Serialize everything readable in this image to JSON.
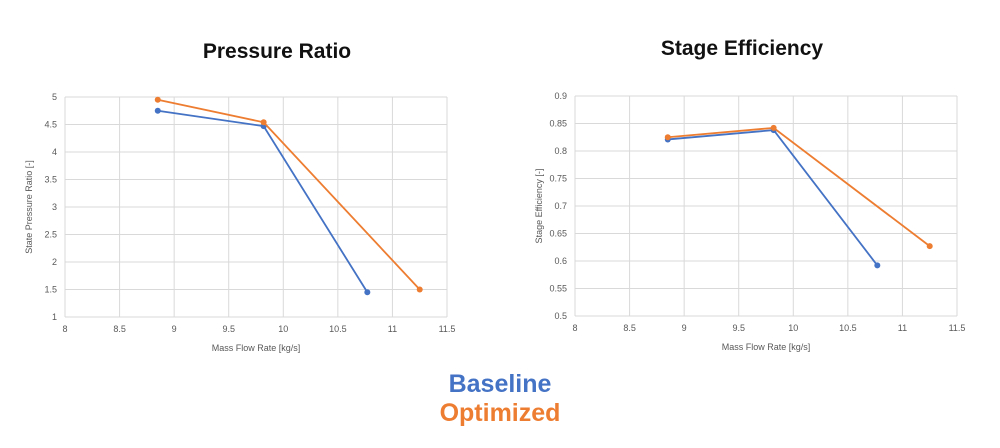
{
  "legend": {
    "baseline": "Baseline",
    "optimized": "Optimized"
  },
  "colors": {
    "baseline": "#4472C4",
    "optimized": "#ED7D31",
    "grid": "#D9D9D9",
    "axis_text": "#595959"
  },
  "chart_data": [
    {
      "type": "line",
      "title": "Pressure Ratio",
      "xlabel": "Mass Flow Rate [kg/s]",
      "ylabel": "State Pressure Ratio [-]",
      "xlim": [
        8,
        11.5
      ],
      "ylim": [
        1,
        5
      ],
      "xticks": [
        "8",
        "8.5",
        "9",
        "9.5",
        "10",
        "10.5",
        "11",
        "11.5"
      ],
      "yticks": [
        "1",
        "1.5",
        "2",
        "2.5",
        "3",
        "3.5",
        "4",
        "4.5",
        "5"
      ],
      "grid": true,
      "series": [
        {
          "name": "Baseline",
          "x": [
            8.85,
            9.82,
            10.77
          ],
          "y": [
            4.75,
            4.47,
            1.45
          ]
        },
        {
          "name": "Optimized",
          "x": [
            8.85,
            9.82,
            11.25
          ],
          "y": [
            4.95,
            4.54,
            1.5
          ]
        }
      ]
    },
    {
      "type": "line",
      "title": "Stage Efficiency",
      "xlabel": "Mass Flow Rate [kg/s]",
      "ylabel": "Stage Efficiency [-]",
      "xlim": [
        8,
        11.5
      ],
      "ylim": [
        0.5,
        0.9
      ],
      "xticks": [
        "8",
        "8.5",
        "9",
        "9.5",
        "10",
        "10.5",
        "11",
        "11.5"
      ],
      "yticks": [
        "0.5",
        "0.55",
        "0.6",
        "0.65",
        "0.7",
        "0.75",
        "0.8",
        "0.85",
        "0.9"
      ],
      "grid": true,
      "series": [
        {
          "name": "Baseline",
          "x": [
            8.85,
            9.82,
            10.77
          ],
          "y": [
            0.821,
            0.838,
            0.592
          ]
        },
        {
          "name": "Optimized",
          "x": [
            8.85,
            9.82,
            11.25
          ],
          "y": [
            0.825,
            0.842,
            0.627
          ]
        }
      ]
    }
  ]
}
